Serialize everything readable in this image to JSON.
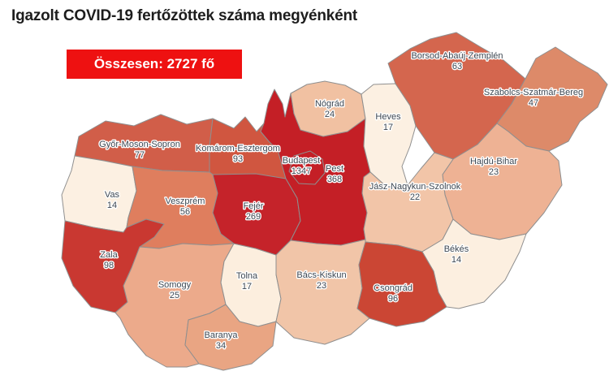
{
  "title": "Igazolt COVID-19 fertőzöttek száma megyénként",
  "total_badge": {
    "label": "Összesen: 2727 fő",
    "background": "#ee1111",
    "text_color": "#ffffff"
  },
  "map": {
    "border_color": "#8f8f8f",
    "label_color": "#3d4752",
    "counties": [
      {
        "id": "gyor",
        "name": "Győr-Moson-Sopron",
        "value": "77",
        "color": "#d15e49"
      },
      {
        "id": "komarom",
        "name": "Komárom-Esztergom",
        "value": "93",
        "color": "#d05640"
      },
      {
        "id": "vas",
        "name": "Vas",
        "value": "14",
        "color": "#fcf0e2"
      },
      {
        "id": "veszprem",
        "name": "Veszprém",
        "value": "56",
        "color": "#df7e5e"
      },
      {
        "id": "zala",
        "name": "Zala",
        "value": "98",
        "color": "#c93831"
      },
      {
        "id": "somogy",
        "name": "Somogy",
        "value": "25",
        "color": "#ecaa8b"
      },
      {
        "id": "tolna",
        "name": "Tolna",
        "value": "17",
        "color": "#fceede"
      },
      {
        "id": "baranya",
        "name": "Baranya",
        "value": "34",
        "color": "#e9a583"
      },
      {
        "id": "fejer",
        "name": "Fejér",
        "value": "269",
        "color": "#c5232a"
      },
      {
        "id": "pest",
        "name": "Pest",
        "value": "368",
        "color": "#c41f26"
      },
      {
        "id": "budapest",
        "name": "Budapest",
        "value": "1347",
        "color": "#c41f26"
      },
      {
        "id": "nograd",
        "name": "Nógrád",
        "value": "24",
        "color": "#f1c1a2"
      },
      {
        "id": "heves",
        "name": "Heves",
        "value": "17",
        "color": "#fcf0e2"
      },
      {
        "id": "borsod",
        "name": "Borsod-Abaúj-Zemplén",
        "value": "63",
        "color": "#d4664e"
      },
      {
        "id": "szabolcs",
        "name": "Szabolcs-Szatmár-Bereg",
        "value": "47",
        "color": "#dd8a69"
      },
      {
        "id": "hajdu",
        "name": "Hajdú-Bihar",
        "value": "23",
        "color": "#eeb294"
      },
      {
        "id": "jasz",
        "name": "Jász-Nagykun-Szolnok",
        "value": "22",
        "color": "#f2c5a8"
      },
      {
        "id": "bacs",
        "name": "Bács-Kiskun",
        "value": "23",
        "color": "#f1c5a8"
      },
      {
        "id": "bekes",
        "name": "Békés",
        "value": "14",
        "color": "#fcefe0"
      },
      {
        "id": "csongrad",
        "name": "Csongrád",
        "value": "96",
        "color": "#cb4634"
      }
    ]
  },
  "chart_data": {
    "type": "heatmap",
    "subtype": "choropleth-map",
    "region": "Hungary, by county (megye)",
    "title": "Igazolt COVID-19 fertőzöttek száma megyénként",
    "total_label": "Összesen: 2727 fő",
    "total": 2727,
    "unit": "fő",
    "legend": "none",
    "categories": [
      "Győr-Moson-Sopron",
      "Komárom-Esztergom",
      "Vas",
      "Veszprém",
      "Zala",
      "Somogy",
      "Tolna",
      "Baranya",
      "Fejér",
      "Pest",
      "Budapest",
      "Nógrád",
      "Heves",
      "Borsod-Abaúj-Zemplén",
      "Szabolcs-Szatmár-Bereg",
      "Hajdú-Bihar",
      "Jász-Nagykun-Szolnok",
      "Bács-Kiskun",
      "Békés",
      "Csongrád"
    ],
    "values": [
      77,
      93,
      14,
      56,
      98,
      25,
      17,
      34,
      269,
      368,
      1347,
      24,
      17,
      63,
      47,
      23,
      22,
      23,
      14,
      96
    ],
    "color_scale": [
      "#fcf0e2",
      "#f1c5a8",
      "#ecaa8b",
      "#dd8a69",
      "#d15e49",
      "#cb4634",
      "#c41f26"
    ]
  }
}
